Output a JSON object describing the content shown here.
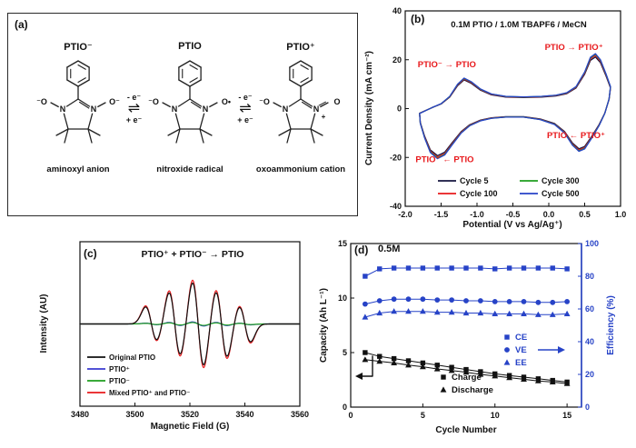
{
  "panel_a": {
    "tag": "(a)",
    "species": [
      {
        "title": "PTIO⁻",
        "name": "aminoxyl anion",
        "left_o": "⁻O",
        "right_o": "O⁻",
        "no_double": false,
        "n_plus": ""
      },
      {
        "title": "PTIO",
        "name": "nitroxide radical",
        "left_o": "⁻O",
        "right_o": "O•",
        "no_double": false,
        "n_plus": ""
      },
      {
        "title": "PTIO⁺",
        "name": "oxoammonium cation",
        "left_o": "⁻O",
        "right_o": "O",
        "no_double": true,
        "n_plus": "+"
      }
    ],
    "equilibria": [
      {
        "top": "- e⁻",
        "arrow": "⇌",
        "bottom": "+ e⁻"
      },
      {
        "top": "- e⁻",
        "arrow": "⇌",
        "bottom": "+ e⁻"
      }
    ]
  },
  "chart_data": [
    {
      "id": "cv",
      "type": "line",
      "panel": "(b)",
      "title": "0.1M PTIO / 1.0M TBAPF6 / MeCN",
      "xlabel": "Potential (V vs Ag/Ag⁺)",
      "ylabel": "Current Density (mA cm⁻²)",
      "xlim": [
        -2.0,
        1.0
      ],
      "ylim": [
        -40,
        40
      ],
      "xticks": [
        -2.0,
        -1.5,
        -1.0,
        -0.5,
        0.0,
        0.5,
        1.0
      ],
      "yticks": [
        -40,
        -20,
        0,
        20,
        40
      ],
      "annotation_color": "#e8191c",
      "series": [
        {
          "name": "Cycle 5",
          "color": "#15153f",
          "scale": 0.94
        },
        {
          "name": "Cycle 100",
          "color": "#e8191c",
          "scale": 0.97
        },
        {
          "name": "Cycle 300",
          "color": "#1e9e1e",
          "scale": 0.99
        },
        {
          "name": "Cycle 500",
          "color": "#2743c7",
          "scale": 1.0
        }
      ],
      "loop_V_mA": [
        [
          -1.8,
          -2
        ],
        [
          -1.62,
          0.5
        ],
        [
          -1.5,
          2
        ],
        [
          -1.38,
          5
        ],
        [
          -1.27,
          10
        ],
        [
          -1.18,
          12.5
        ],
        [
          -1.08,
          11
        ],
        [
          -0.95,
          8
        ],
        [
          -0.8,
          6
        ],
        [
          -0.6,
          5
        ],
        [
          -0.35,
          4.8
        ],
        [
          -0.1,
          5
        ],
        [
          0.1,
          5.5
        ],
        [
          0.25,
          6.5
        ],
        [
          0.38,
          9
        ],
        [
          0.5,
          15
        ],
        [
          0.58,
          21
        ],
        [
          0.65,
          22.5
        ],
        [
          0.72,
          20
        ],
        [
          0.8,
          14
        ],
        [
          0.86,
          9
        ],
        [
          0.84,
          4
        ],
        [
          0.78,
          -2
        ],
        [
          0.7,
          -7
        ],
        [
          0.6,
          -12
        ],
        [
          0.5,
          -16.5
        ],
        [
          0.42,
          -17.5
        ],
        [
          0.33,
          -15
        ],
        [
          0.22,
          -10
        ],
        [
          0.08,
          -6.5
        ],
        [
          -0.12,
          -4.5
        ],
        [
          -0.35,
          -3.5
        ],
        [
          -0.6,
          -3.5
        ],
        [
          -0.8,
          -4
        ],
        [
          -0.95,
          -5
        ],
        [
          -1.1,
          -7
        ],
        [
          -1.22,
          -10
        ],
        [
          -1.35,
          -15
        ],
        [
          -1.45,
          -19
        ],
        [
          -1.55,
          -20.5
        ],
        [
          -1.65,
          -18
        ],
        [
          -1.73,
          -12
        ],
        [
          -1.79,
          -6
        ]
      ],
      "annotations": [
        {
          "text": "PTIO⁻ → PTIO",
          "x": -1.42,
          "y": 17
        },
        {
          "text": "PTIO → PTIO⁺",
          "x": 0.35,
          "y": 24
        },
        {
          "text": "PTIO ← PTIO⁺",
          "x": 0.38,
          "y": -12
        },
        {
          "text": "PTIO⁻ ← PTIO",
          "x": -1.45,
          "y": -22
        }
      ]
    },
    {
      "id": "epr",
      "type": "line",
      "panel": "(c)",
      "title": "PTIO⁺ + PTIO⁻ → PTIO",
      "xlabel": "Magnetic Field (G)",
      "ylabel": "Intensity (AU)",
      "xlim": [
        3480,
        3560
      ],
      "xticks": [
        3480,
        3500,
        3520,
        3540,
        3560
      ],
      "line_centers_G": [
        3506,
        3514.5,
        3523,
        3531.5,
        3540
      ],
      "line_amplitudes": [
        0.4,
        0.75,
        1.0,
        0.78,
        0.42
      ],
      "line_width_G": 2.1,
      "series": [
        {
          "name": "Original PTIO",
          "color": "#111111",
          "scale": 1.0
        },
        {
          "name": "PTIO⁺",
          "color": "#3a3ad0",
          "scale": 0.05
        },
        {
          "name": "PTIO⁻",
          "color": "#1e9e1e",
          "scale": 0.035
        },
        {
          "name": "Mixed PTIO⁺ and PTIO⁻",
          "color": "#e8191c",
          "scale": 1.07
        }
      ],
      "draw_order": [
        3,
        1,
        2,
        0
      ]
    },
    {
      "id": "capacity",
      "type": "scatter",
      "panel": "(d)",
      "conc_label": "0.5M",
      "xlabel": "Cycle Number",
      "ylabel_left": "Capacity (Ah L⁻¹)",
      "ylabel_right": "Efficiency (%)",
      "xlim": [
        0,
        16
      ],
      "xticks": [
        0,
        5,
        10,
        15
      ],
      "ylim_left": [
        0,
        15
      ],
      "yticks_left": [
        0,
        5,
        10,
        15
      ],
      "ylim_right": [
        0,
        100
      ],
      "yticks_right": [
        0,
        20,
        40,
        60,
        80,
        100
      ],
      "axis_color_right": "#2743c7",
      "cycles": [
        1,
        2,
        3,
        4,
        5,
        6,
        7,
        8,
        9,
        10,
        11,
        12,
        13,
        14,
        15
      ],
      "efficiency_series": [
        {
          "name": "CE",
          "marker": "square",
          "values": [
            80,
            84.5,
            85,
            85,
            85,
            85,
            85,
            85,
            85,
            84.5,
            85,
            85,
            85,
            85,
            84.5
          ]
        },
        {
          "name": "VE",
          "marker": "circle",
          "values": [
            63,
            65,
            66,
            66,
            66,
            65.5,
            65.5,
            65,
            65,
            64.5,
            64.5,
            64.5,
            64,
            64,
            64.5
          ]
        },
        {
          "name": "EE",
          "marker": "triangle",
          "values": [
            55,
            57.5,
            58.5,
            58.5,
            58.5,
            58,
            58,
            57.5,
            57.5,
            57,
            57,
            57,
            56.5,
            56.5,
            57
          ]
        }
      ],
      "capacity_series": [
        {
          "name": "Charge",
          "marker": "square",
          "values": [
            5.0,
            4.65,
            4.45,
            4.25,
            4.05,
            3.85,
            3.65,
            3.45,
            3.25,
            3.05,
            2.9,
            2.75,
            2.6,
            2.45,
            2.3
          ]
        },
        {
          "name": "Discharge",
          "marker": "triangle",
          "values": [
            4.35,
            4.2,
            4.05,
            3.85,
            3.7,
            3.5,
            3.35,
            3.2,
            3.0,
            2.85,
            2.7,
            2.55,
            2.4,
            2.3,
            2.15
          ]
        }
      ]
    }
  ]
}
